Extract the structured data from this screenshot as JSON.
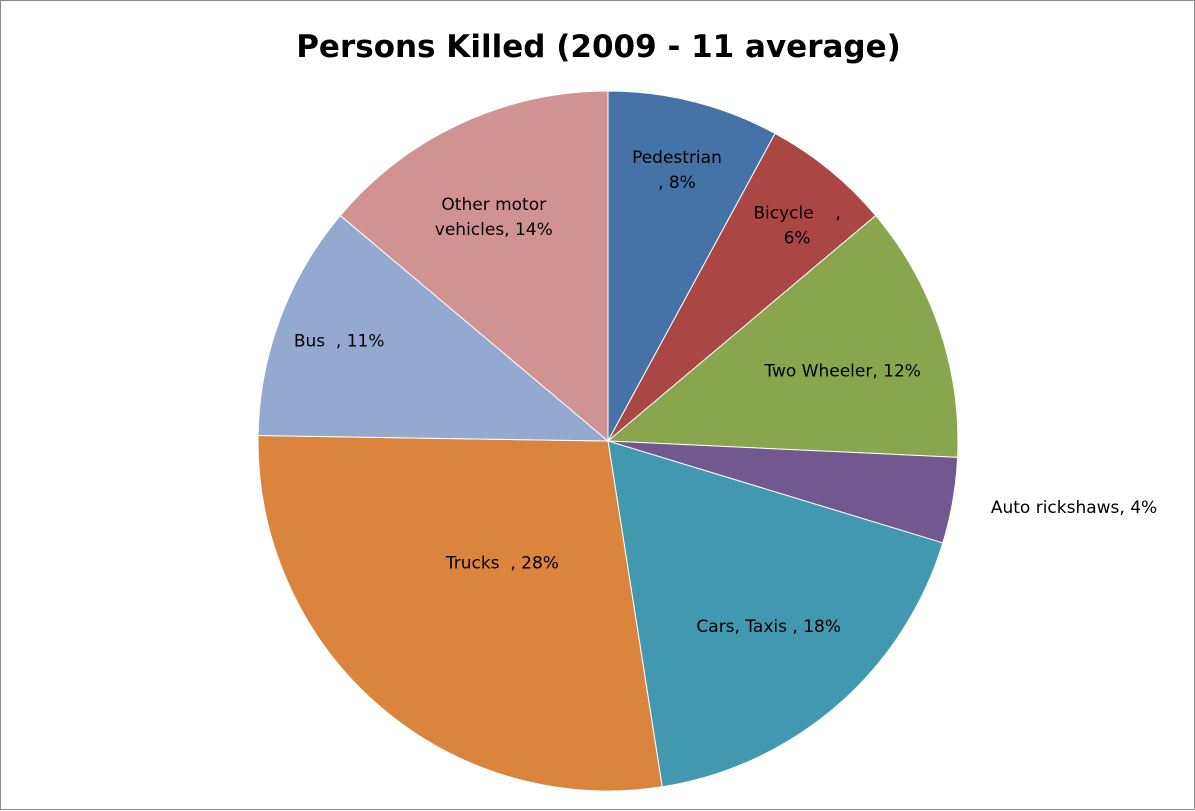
{
  "chart_data": {
    "type": "pie",
    "title": "Persons Killed (2009 - 11 average)",
    "start_angle_deg": 0,
    "direction": "clockwise",
    "legend": "none",
    "slices": [
      {
        "name": "Pedestrian",
        "value": 8,
        "label_lines": [
          "Pedestrian",
          ", 8%"
        ],
        "color": "#4572A7"
      },
      {
        "name": "Bicycle",
        "value": 6,
        "label_lines": [
          "Bicycle    ,",
          "6%"
        ],
        "color": "#AA4643"
      },
      {
        "name": "Two Wheeler",
        "value": 12,
        "label_lines": [
          "Two Wheeler, 12%"
        ],
        "color": "#89A54E"
      },
      {
        "name": "Auto rickshaws",
        "value": 4,
        "label_lines": [
          "Auto rickshaws, 4%"
        ],
        "color": "#71588F"
      },
      {
        "name": "Cars, Taxis",
        "value": 18,
        "label_lines": [
          "Cars, Taxis , 18%"
        ],
        "color": "#4198AF"
      },
      {
        "name": "Trucks",
        "value": 28,
        "label_lines": [
          "Trucks  , 28%"
        ],
        "color": "#DB843D"
      },
      {
        "name": "Bus",
        "value": 11,
        "label_lines": [
          "Bus  , 11%"
        ],
        "color": "#93A9CF"
      },
      {
        "name": "Other motor vehicles",
        "value": 14,
        "label_lines": [
          "Other motor",
          "vehicles, 14%"
        ],
        "color": "#D19392"
      }
    ]
  }
}
